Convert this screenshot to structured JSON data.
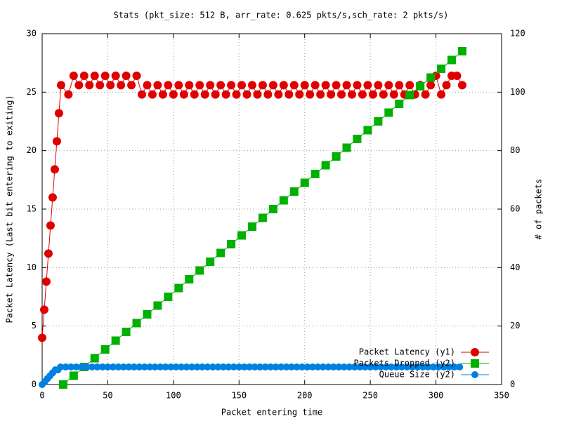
{
  "chart_data": {
    "type": "line",
    "title": "Stats (pkt_size: 512 B, arr_rate: 0.625 pkts/s,sch_rate: 2 pkts/s)",
    "x_label": "Packet entering time",
    "y_label": "Packet Latency (Last bit entering to exiting)",
    "y2_label": "# of packets",
    "xlim": [
      0,
      350
    ],
    "xticks": [
      0,
      50,
      100,
      150,
      200,
      250,
      300,
      350
    ],
    "ylim": [
      0,
      30
    ],
    "yticks": [
      0,
      5,
      10,
      15,
      20,
      25,
      30
    ],
    "y2lim": [
      0,
      120
    ],
    "y2ticks": [
      0,
      20,
      40,
      60,
      80,
      100,
      120
    ],
    "grid": true,
    "legend": "bottom-right",
    "series": [
      {
        "name": "Packet Latency (y1)",
        "color": "#e00000",
        "marker": "circle",
        "x": [
          0,
          1.6,
          3.2,
          4.8,
          6.4,
          8,
          9.6,
          11.2,
          12.8,
          14.4,
          20,
          24,
          28,
          32,
          36,
          40,
          44,
          48,
          52,
          56,
          60,
          64,
          68,
          72,
          76,
          80,
          84,
          88,
          92,
          96,
          100,
          104,
          108,
          112,
          116,
          120,
          124,
          128,
          132,
          136,
          140,
          144,
          148,
          152,
          156,
          160,
          164,
          168,
          172,
          176,
          180,
          184,
          188,
          192,
          196,
          200,
          204,
          208,
          212,
          216,
          220,
          224,
          228,
          232,
          236,
          240,
          244,
          248,
          252,
          256,
          260,
          264,
          268,
          272,
          276,
          280,
          284,
          288,
          292,
          296,
          300,
          304,
          308,
          312,
          316,
          320
        ],
        "values": [
          4,
          6.4,
          8.8,
          11.2,
          13.6,
          16,
          18.4,
          20.8,
          23.2,
          25.6,
          24.8,
          26.4,
          25.6,
          26.4,
          25.6,
          26.4,
          25.6,
          26.4,
          25.6,
          26.4,
          25.6,
          26.4,
          25.6,
          26.4,
          24.8,
          25.6,
          24.8,
          25.6,
          24.8,
          25.6,
          24.8,
          25.6,
          24.8,
          25.6,
          24.8,
          25.6,
          24.8,
          25.6,
          24.8,
          25.6,
          24.8,
          25.6,
          24.8,
          25.6,
          24.8,
          25.6,
          24.8,
          25.6,
          24.8,
          25.6,
          24.8,
          25.6,
          24.8,
          25.6,
          24.8,
          25.6,
          24.8,
          25.6,
          24.8,
          25.6,
          24.8,
          25.6,
          24.8,
          25.6,
          24.8,
          25.6,
          24.8,
          25.6,
          24.8,
          25.6,
          24.8,
          25.6,
          24.8,
          25.6,
          24.8,
          25.6,
          24.8,
          25.6,
          24.8,
          25.6,
          26.4,
          24.8,
          25.6,
          26.4,
          26.4,
          25.6
        ]
      },
      {
        "name": "Packets Dropped (y2)",
        "color": "#00b000",
        "marker": "square",
        "axis": "y2",
        "x": [
          16,
          24,
          32,
          40,
          48,
          56,
          64,
          72,
          80,
          88,
          96,
          104,
          112,
          120,
          128,
          136,
          144,
          152,
          160,
          168,
          176,
          184,
          192,
          200,
          208,
          216,
          224,
          232,
          240,
          248,
          256,
          264,
          272,
          280,
          288,
          296,
          304,
          312,
          320
        ],
        "values": [
          0,
          3,
          6,
          9,
          12,
          15,
          18,
          21,
          24,
          27,
          30,
          33,
          36,
          39,
          42,
          45,
          48,
          51,
          54,
          57,
          60,
          63,
          66,
          69,
          72,
          75,
          78,
          81,
          84,
          87,
          90,
          93,
          96,
          99,
          102,
          105,
          108,
          111,
          114
        ]
      },
      {
        "name": "Queue Size (y2)",
        "color": "#0080e0",
        "marker": "circle",
        "axis": "y2",
        "x": [
          0,
          2,
          4,
          6,
          8,
          10,
          12,
          14,
          18,
          22,
          26,
          30,
          34,
          38,
          42,
          46,
          50,
          54,
          58,
          62,
          66,
          70,
          74,
          78,
          82,
          86,
          90,
          94,
          98,
          102,
          106,
          110,
          114,
          118,
          122,
          126,
          130,
          134,
          138,
          142,
          146,
          150,
          154,
          158,
          162,
          166,
          170,
          174,
          178,
          182,
          186,
          190,
          194,
          198,
          202,
          206,
          210,
          214,
          218,
          222,
          226,
          230,
          234,
          238,
          242,
          246,
          250,
          254,
          258,
          262,
          266,
          270,
          274,
          278,
          282,
          286,
          290,
          294,
          298,
          302,
          306,
          310,
          314,
          318
        ],
        "values": [
          0,
          1,
          2,
          3,
          4,
          5,
          5,
          6,
          6,
          6,
          6,
          6,
          6,
          6,
          6,
          6,
          6,
          6,
          6,
          6,
          6,
          6,
          6,
          6,
          6,
          6,
          6,
          6,
          6,
          6,
          6,
          6,
          6,
          6,
          6,
          6,
          6,
          6,
          6,
          6,
          6,
          6,
          6,
          6,
          6,
          6,
          6,
          6,
          6,
          6,
          6,
          6,
          6,
          6,
          6,
          6,
          6,
          6,
          6,
          6,
          6,
          6,
          6,
          6,
          6,
          6,
          6,
          6,
          6,
          6,
          6,
          6,
          6,
          6,
          6,
          6,
          6,
          6,
          6,
          6,
          6,
          6,
          6,
          6
        ]
      }
    ]
  }
}
